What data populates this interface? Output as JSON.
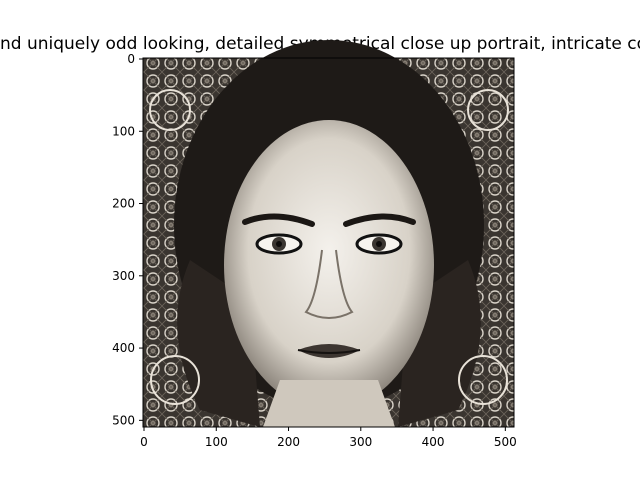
{
  "figure": {
    "title": "nd uniquely odd looking, detailed symmetrical close up portrait, intricate com"
  },
  "image": {
    "description": "grayscale symmetrical close-up portrait of a woman with dark hair surrounded by intricate ornamental patterns"
  },
  "axes": {
    "x_ticks": [
      "0",
      "100",
      "200",
      "300",
      "400",
      "500"
    ],
    "y_ticks": [
      "0",
      "100",
      "200",
      "300",
      "400",
      "500"
    ]
  }
}
